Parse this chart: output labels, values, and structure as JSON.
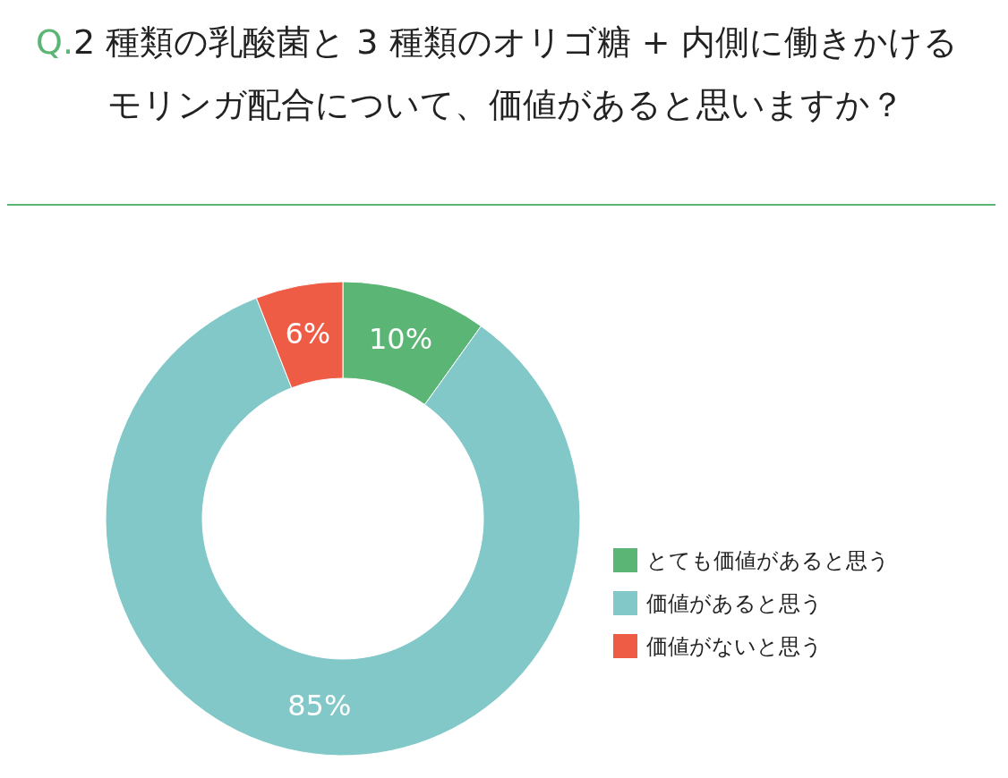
{
  "chart_data": {
    "type": "donut",
    "title": "Q.2 種類の乳酸菌と 3 種類のオリゴ糖 + 内側に働きかけるモリンガ配合について、価値があると思いますか？",
    "categories": [
      "とても価値があると思う",
      "価値があると思う",
      "価値がないと思う"
    ],
    "values": [
      10,
      85,
      6
    ],
    "colors": [
      "#5bb574",
      "#82c8c9",
      "#ef5c45"
    ],
    "value_labels": [
      "10%",
      "85%",
      "6%"
    ],
    "legend": "right"
  }
}
